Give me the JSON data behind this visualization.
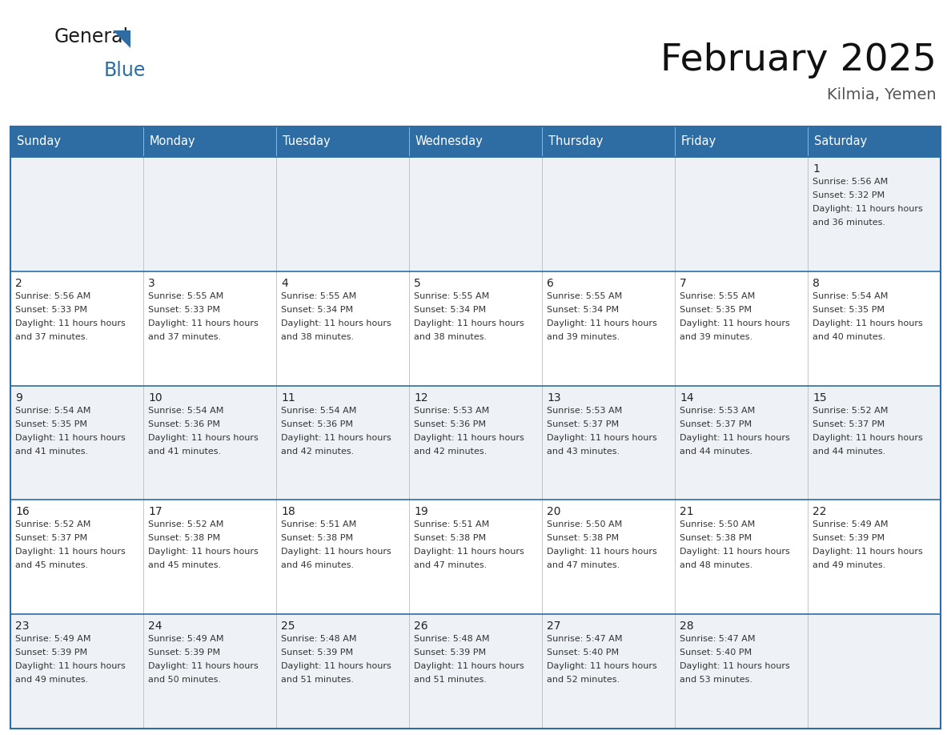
{
  "title": "February 2025",
  "subtitle": "Kilmia, Yemen",
  "header_bg": "#2E6DA4",
  "header_text_color": "#FFFFFF",
  "cell_bg_light": "#EEF2F7",
  "cell_bg_white": "#FFFFFF",
  "border_color": "#2E6DA4",
  "row_line_color": "#2E6DA4",
  "day_headers": [
    "Sunday",
    "Monday",
    "Tuesday",
    "Wednesday",
    "Thursday",
    "Friday",
    "Saturday"
  ],
  "days": [
    {
      "day": 1,
      "col": 6,
      "row": 0,
      "sunrise": "5:56 AM",
      "sunset": "5:32 PM",
      "daylight": "11 hours and 36 minutes."
    },
    {
      "day": 2,
      "col": 0,
      "row": 1,
      "sunrise": "5:56 AM",
      "sunset": "5:33 PM",
      "daylight": "11 hours and 37 minutes."
    },
    {
      "day": 3,
      "col": 1,
      "row": 1,
      "sunrise": "5:55 AM",
      "sunset": "5:33 PM",
      "daylight": "11 hours and 37 minutes."
    },
    {
      "day": 4,
      "col": 2,
      "row": 1,
      "sunrise": "5:55 AM",
      "sunset": "5:34 PM",
      "daylight": "11 hours and 38 minutes."
    },
    {
      "day": 5,
      "col": 3,
      "row": 1,
      "sunrise": "5:55 AM",
      "sunset": "5:34 PM",
      "daylight": "11 hours and 38 minutes."
    },
    {
      "day": 6,
      "col": 4,
      "row": 1,
      "sunrise": "5:55 AM",
      "sunset": "5:34 PM",
      "daylight": "11 hours and 39 minutes."
    },
    {
      "day": 7,
      "col": 5,
      "row": 1,
      "sunrise": "5:55 AM",
      "sunset": "5:35 PM",
      "daylight": "11 hours and 39 minutes."
    },
    {
      "day": 8,
      "col": 6,
      "row": 1,
      "sunrise": "5:54 AM",
      "sunset": "5:35 PM",
      "daylight": "11 hours and 40 minutes."
    },
    {
      "day": 9,
      "col": 0,
      "row": 2,
      "sunrise": "5:54 AM",
      "sunset": "5:35 PM",
      "daylight": "11 hours and 41 minutes."
    },
    {
      "day": 10,
      "col": 1,
      "row": 2,
      "sunrise": "5:54 AM",
      "sunset": "5:36 PM",
      "daylight": "11 hours and 41 minutes."
    },
    {
      "day": 11,
      "col": 2,
      "row": 2,
      "sunrise": "5:54 AM",
      "sunset": "5:36 PM",
      "daylight": "11 hours and 42 minutes."
    },
    {
      "day": 12,
      "col": 3,
      "row": 2,
      "sunrise": "5:53 AM",
      "sunset": "5:36 PM",
      "daylight": "11 hours and 42 minutes."
    },
    {
      "day": 13,
      "col": 4,
      "row": 2,
      "sunrise": "5:53 AM",
      "sunset": "5:37 PM",
      "daylight": "11 hours and 43 minutes."
    },
    {
      "day": 14,
      "col": 5,
      "row": 2,
      "sunrise": "5:53 AM",
      "sunset": "5:37 PM",
      "daylight": "11 hours and 44 minutes."
    },
    {
      "day": 15,
      "col": 6,
      "row": 2,
      "sunrise": "5:52 AM",
      "sunset": "5:37 PM",
      "daylight": "11 hours and 44 minutes."
    },
    {
      "day": 16,
      "col": 0,
      "row": 3,
      "sunrise": "5:52 AM",
      "sunset": "5:37 PM",
      "daylight": "11 hours and 45 minutes."
    },
    {
      "day": 17,
      "col": 1,
      "row": 3,
      "sunrise": "5:52 AM",
      "sunset": "5:38 PM",
      "daylight": "11 hours and 45 minutes."
    },
    {
      "day": 18,
      "col": 2,
      "row": 3,
      "sunrise": "5:51 AM",
      "sunset": "5:38 PM",
      "daylight": "11 hours and 46 minutes."
    },
    {
      "day": 19,
      "col": 3,
      "row": 3,
      "sunrise": "5:51 AM",
      "sunset": "5:38 PM",
      "daylight": "11 hours and 47 minutes."
    },
    {
      "day": 20,
      "col": 4,
      "row": 3,
      "sunrise": "5:50 AM",
      "sunset": "5:38 PM",
      "daylight": "11 hours and 47 minutes."
    },
    {
      "day": 21,
      "col": 5,
      "row": 3,
      "sunrise": "5:50 AM",
      "sunset": "5:38 PM",
      "daylight": "11 hours and 48 minutes."
    },
    {
      "day": 22,
      "col": 6,
      "row": 3,
      "sunrise": "5:49 AM",
      "sunset": "5:39 PM",
      "daylight": "11 hours and 49 minutes."
    },
    {
      "day": 23,
      "col": 0,
      "row": 4,
      "sunrise": "5:49 AM",
      "sunset": "5:39 PM",
      "daylight": "11 hours and 49 minutes."
    },
    {
      "day": 24,
      "col": 1,
      "row": 4,
      "sunrise": "5:49 AM",
      "sunset": "5:39 PM",
      "daylight": "11 hours and 50 minutes."
    },
    {
      "day": 25,
      "col": 2,
      "row": 4,
      "sunrise": "5:48 AM",
      "sunset": "5:39 PM",
      "daylight": "11 hours and 51 minutes."
    },
    {
      "day": 26,
      "col": 3,
      "row": 4,
      "sunrise": "5:48 AM",
      "sunset": "5:39 PM",
      "daylight": "11 hours and 51 minutes."
    },
    {
      "day": 27,
      "col": 4,
      "row": 4,
      "sunrise": "5:47 AM",
      "sunset": "5:40 PM",
      "daylight": "11 hours and 52 minutes."
    },
    {
      "day": 28,
      "col": 5,
      "row": 4,
      "sunrise": "5:47 AM",
      "sunset": "5:40 PM",
      "daylight": "11 hours and 53 minutes."
    }
  ],
  "num_rows": 5,
  "num_cols": 7
}
